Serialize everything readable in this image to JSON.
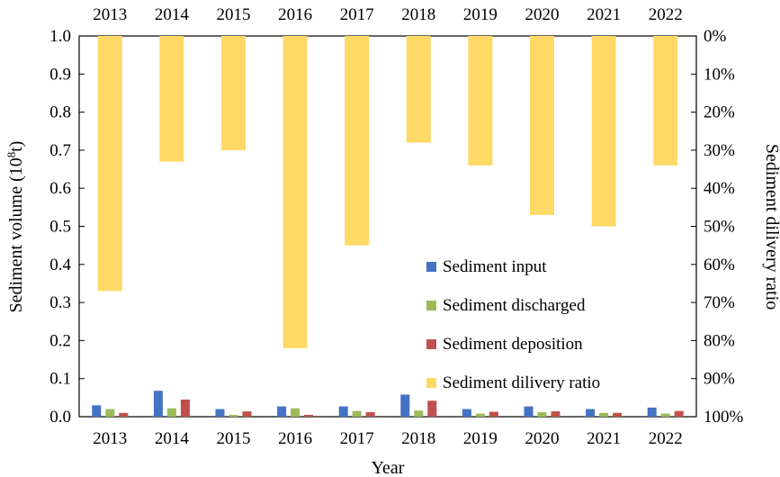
{
  "chart_data": {
    "type": "bar",
    "categories": [
      "2013",
      "2014",
      "2015",
      "2016",
      "2017",
      "2018",
      "2019",
      "2020",
      "2021",
      "2022"
    ],
    "series": [
      {
        "name": "Sediment input",
        "axis": "left",
        "color": "#4472C4",
        "values": [
          0.03,
          0.068,
          0.02,
          0.027,
          0.027,
          0.058,
          0.02,
          0.027,
          0.02,
          0.024
        ]
      },
      {
        "name": "Sediment discharged",
        "axis": "left",
        "color": "#9BBB59",
        "values": [
          0.02,
          0.022,
          0.005,
          0.022,
          0.015,
          0.016,
          0.008,
          0.012,
          0.01,
          0.008
        ]
      },
      {
        "name": "Sediment deposition",
        "axis": "left",
        "color": "#C0504D",
        "values": [
          0.01,
          0.045,
          0.014,
          0.005,
          0.012,
          0.042,
          0.013,
          0.014,
          0.01,
          0.015
        ]
      },
      {
        "name": "Sediment dilivery ratio",
        "axis": "right",
        "color": "#FFD966",
        "values": [
          67,
          33,
          30,
          82,
          55,
          28,
          34,
          47,
          50,
          34
        ]
      }
    ],
    "xlabel": "Year",
    "ylabel_left": "Sediment volume (10",
    "ylabel_left_sup": "8",
    "ylabel_left_unit": "t)",
    "ylabel_right": "Sediment dilivery ratio",
    "ylim_left": [
      0,
      1.0
    ],
    "yticks_left": [
      "0.0",
      "0.1",
      "0.2",
      "0.3",
      "0.4",
      "0.5",
      "0.6",
      "0.7",
      "0.8",
      "0.9",
      "1.0"
    ],
    "ylim_right": [
      0,
      100
    ],
    "yticks_right": [
      "0%",
      "10%",
      "20%",
      "30%",
      "40%",
      "50%",
      "60%",
      "70%",
      "80%",
      "90%",
      "100%"
    ],
    "right_axis_inverted": true,
    "top_axis_labels": true,
    "grid": false,
    "legend_position": "center-right"
  }
}
